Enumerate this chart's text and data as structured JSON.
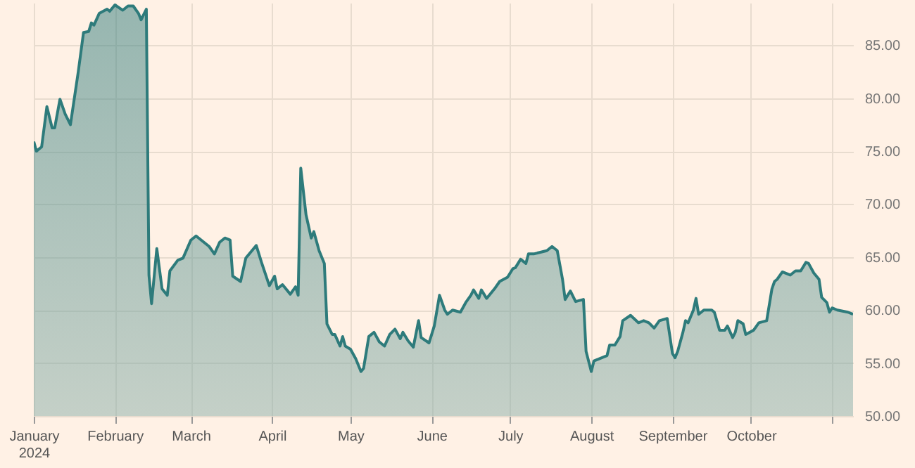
{
  "chart_data": {
    "type": "area",
    "x": [
      "2024-01-01",
      "2024-01-02",
      "2024-01-04",
      "2024-01-06",
      "2024-01-08",
      "2024-01-09",
      "2024-01-11",
      "2024-01-13",
      "2024-01-15",
      "2024-01-18",
      "2024-01-20",
      "2024-01-22",
      "2024-01-23",
      "2024-01-24",
      "2024-01-26",
      "2024-01-29",
      "2024-01-30",
      "2024-02-01",
      "2024-02-04",
      "2024-02-06",
      "2024-02-08",
      "2024-02-10",
      "2024-02-11",
      "2024-02-13",
      "2024-02-14",
      "2024-02-15",
      "2024-02-17",
      "2024-02-19",
      "2024-02-21",
      "2024-02-22",
      "2024-02-25",
      "2024-02-27",
      "2024-03-01",
      "2024-03-03",
      "2024-03-06",
      "2024-03-08",
      "2024-03-10",
      "2024-03-12",
      "2024-03-14",
      "2024-03-16",
      "2024-03-17",
      "2024-03-20",
      "2024-03-22",
      "2024-03-26",
      "2024-03-28",
      "2024-03-31",
      "2024-04-02",
      "2024-04-03",
      "2024-04-05",
      "2024-04-08",
      "2024-04-10",
      "2024-04-11",
      "2024-04-12",
      "2024-04-14",
      "2024-04-16",
      "2024-04-17",
      "2024-04-19",
      "2024-04-21",
      "2024-04-22",
      "2024-04-24",
      "2024-04-25",
      "2024-04-27",
      "2024-04-28",
      "2024-04-29",
      "2024-05-01",
      "2024-05-03",
      "2024-05-05",
      "2024-05-06",
      "2024-05-08",
      "2024-05-10",
      "2024-05-12",
      "2024-05-14",
      "2024-05-16",
      "2024-05-18",
      "2024-05-20",
      "2024-05-21",
      "2024-05-23",
      "2024-05-25",
      "2024-05-27",
      "2024-05-28",
      "2024-05-31",
      "2024-06-02",
      "2024-06-04",
      "2024-06-06",
      "2024-06-07",
      "2024-06-09",
      "2024-06-12",
      "2024-06-14",
      "2024-06-16",
      "2024-06-17",
      "2024-06-19",
      "2024-06-20",
      "2024-06-22",
      "2024-06-25",
      "2024-06-27",
      "2024-06-30",
      "2024-07-02",
      "2024-07-03",
      "2024-07-05",
      "2024-07-07",
      "2024-07-08",
      "2024-07-10",
      "2024-07-15",
      "2024-07-17",
      "2024-07-19",
      "2024-07-21",
      "2024-07-22",
      "2024-07-24",
      "2024-07-26",
      "2024-07-29",
      "2024-07-30",
      "2024-08-01",
      "2024-08-02",
      "2024-08-04",
      "2024-08-07",
      "2024-08-08",
      "2024-08-10",
      "2024-08-12",
      "2024-08-13",
      "2024-08-16",
      "2024-08-19",
      "2024-08-21",
      "2024-08-23",
      "2024-08-25",
      "2024-08-27",
      "2024-08-30",
      "2024-09-01",
      "2024-09-02",
      "2024-09-03",
      "2024-09-05",
      "2024-09-06",
      "2024-09-07",
      "2024-09-09",
      "2024-09-10",
      "2024-09-11",
      "2024-09-13",
      "2024-09-16",
      "2024-09-17",
      "2024-09-19",
      "2024-09-21",
      "2024-09-22",
      "2024-09-24",
      "2024-09-25",
      "2024-09-26",
      "2024-09-28",
      "2024-09-29",
      "2024-10-02",
      "2024-10-04",
      "2024-10-07",
      "2024-10-09",
      "2024-10-10",
      "2024-10-11",
      "2024-10-13",
      "2024-10-14",
      "2024-10-16",
      "2024-10-18",
      "2024-10-20",
      "2024-10-22",
      "2024-10-23",
      "2024-10-25",
      "2024-10-27",
      "2024-10-28",
      "2024-10-30",
      "2024-10-31",
      "2024-11-01",
      "2024-11-03",
      "2024-11-05",
      "2024-11-07",
      "2024-11-09"
    ],
    "series": [
      {
        "color": "#2e7b7b",
        "values": [
          75.9,
          75.0,
          75.4,
          79.2,
          77.2,
          77.2,
          79.9,
          78.5,
          77.5,
          82.5,
          86.2,
          86.3,
          87.1,
          86.9,
          88.0,
          88.4,
          88.2,
          88.8,
          88.3,
          88.7,
          88.7,
          88.0,
          87.4,
          88.4,
          63.3,
          60.6,
          65.8,
          62.0,
          61.4,
          63.7,
          64.7,
          64.9,
          66.6,
          67.0,
          66.4,
          66.0,
          65.3,
          66.4,
          66.8,
          66.6,
          63.2,
          62.7,
          64.9,
          66.1,
          64.5,
          62.3,
          63.2,
          62.0,
          62.4,
          61.5,
          62.2,
          61.4,
          73.4,
          69.0,
          66.8,
          67.4,
          65.6,
          64.4,
          58.7,
          57.7,
          57.7,
          56.6,
          57.5,
          56.6,
          56.3,
          55.4,
          54.2,
          54.5,
          57.5,
          57.9,
          57.0,
          56.6,
          57.7,
          58.2,
          57.3,
          57.9,
          57.1,
          56.5,
          59.0,
          57.4,
          56.9,
          58.5,
          61.4,
          60.0,
          59.6,
          60.0,
          59.8,
          60.7,
          61.4,
          61.9,
          61.1,
          61.9,
          61.1,
          62.0,
          62.7,
          63.1,
          63.9,
          64.0,
          64.8,
          64.4,
          65.3,
          65.3,
          65.6,
          66.0,
          65.6,
          62.9,
          61.0,
          61.8,
          60.8,
          61.0,
          56.1,
          54.2,
          55.2,
          55.4,
          55.7,
          56.7,
          56.7,
          57.5,
          59.0,
          59.5,
          58.8,
          59.0,
          58.8,
          58.3,
          59.0,
          59.2,
          55.9,
          55.5,
          56.1,
          57.9,
          59.0,
          58.8,
          60.0,
          61.1,
          59.6,
          60.0,
          60.0,
          59.8,
          58.1,
          58.1,
          58.5,
          57.4,
          57.9,
          59.0,
          58.7,
          57.7,
          58.1,
          58.8,
          59.0,
          62.0,
          62.7,
          62.9,
          63.6,
          63.5,
          63.3,
          63.7,
          63.7,
          64.5,
          64.4,
          63.5,
          62.9,
          61.2,
          60.7,
          59.8,
          60.2,
          60.0,
          59.9,
          59.8,
          59.6
        ]
      }
    ],
    "xlim": [
      "2024-01-01",
      "2024-11-09"
    ],
    "xticks": [
      {
        "value": "2024-01-01",
        "label": "January\n2024"
      },
      {
        "value": "2024-02-01",
        "label": "February"
      },
      {
        "value": "2024-03-01",
        "label": "March"
      },
      {
        "value": "2024-04-01",
        "label": "April"
      },
      {
        "value": "2024-05-01",
        "label": "May"
      },
      {
        "value": "2024-06-01",
        "label": "June"
      },
      {
        "value": "2024-07-01",
        "label": "July"
      },
      {
        "value": "2024-08-01",
        "label": "August"
      },
      {
        "value": "2024-09-01",
        "label": "September"
      },
      {
        "value": "2024-10-01",
        "label": "October"
      },
      {
        "value": "2024-11-01",
        "label": null
      }
    ],
    "ylim": [
      50,
      89
    ],
    "yticks": [
      {
        "value": 50,
        "label": "50.00"
      },
      {
        "value": 55,
        "label": "55.00"
      },
      {
        "value": 60,
        "label": "60.00"
      },
      {
        "value": 65,
        "label": "65.00"
      },
      {
        "value": 70,
        "label": "70.00"
      },
      {
        "value": 75,
        "label": "75.00"
      },
      {
        "value": 80,
        "label": "80.00"
      },
      {
        "value": 85,
        "label": "85.00"
      }
    ],
    "grid": true
  }
}
